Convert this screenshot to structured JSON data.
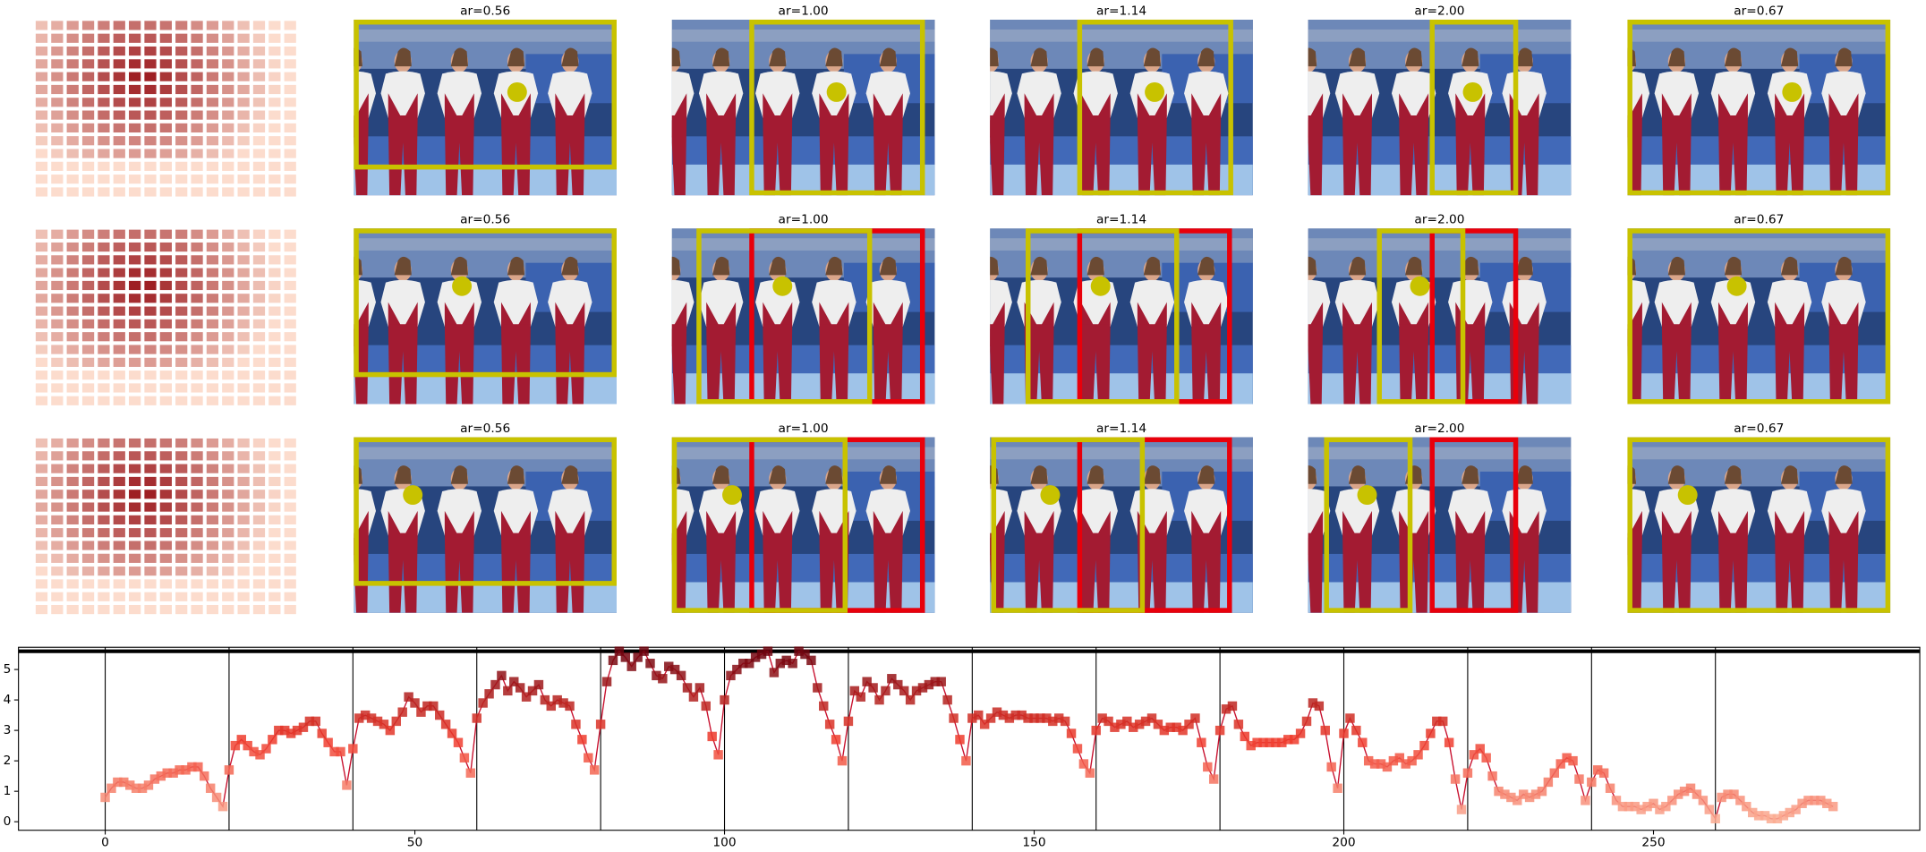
{
  "panel_titles": [
    [
      "ar=0.56",
      "ar=1.00",
      "ar=1.14",
      "ar=2.00",
      "ar=0.67"
    ],
    [
      "ar=0.56",
      "ar=1.00",
      "ar=1.14",
      "ar=2.00",
      "ar=0.67"
    ],
    [
      "ar=0.56",
      "ar=1.00",
      "ar=1.14",
      "ar=2.00",
      "ar=0.67"
    ]
  ],
  "chart_data": {
    "type": "line",
    "color": "#c8102e",
    "x": [
      0,
      1,
      2,
      3,
      4,
      5,
      6,
      7,
      8,
      9,
      10,
      11,
      12,
      13,
      14,
      15,
      16,
      17,
      18,
      19,
      20,
      21,
      22,
      23,
      24,
      25,
      26,
      27,
      28,
      29,
      30,
      31,
      32,
      33,
      34,
      35,
      36,
      37,
      38,
      39,
      40,
      41,
      42,
      43,
      44,
      45,
      46,
      47,
      48,
      49,
      50,
      51,
      52,
      53,
      54,
      55,
      56,
      57,
      58,
      59,
      60,
      61,
      62,
      63,
      64,
      65,
      66,
      67,
      68,
      69,
      70,
      71,
      72,
      73,
      74,
      75,
      76,
      77,
      78,
      79,
      80,
      81,
      82,
      83,
      84,
      85,
      86,
      87,
      88,
      89,
      90,
      91,
      92,
      93,
      94,
      95,
      96,
      97,
      98,
      99,
      100,
      101,
      102,
      103,
      104,
      105,
      106,
      107,
      108,
      109,
      110,
      111,
      112,
      113,
      114,
      115,
      116,
      117,
      118,
      119,
      120,
      121,
      122,
      123,
      124,
      125,
      126,
      127,
      128,
      129,
      130,
      131,
      132,
      133,
      134,
      135,
      136,
      137,
      138,
      139,
      140,
      141,
      142,
      143,
      144,
      145,
      146,
      147,
      148,
      149,
      150,
      151,
      152,
      153,
      154,
      155,
      156,
      157,
      158,
      159,
      160,
      161,
      162,
      163,
      164,
      165,
      166,
      167,
      168,
      169,
      170,
      171,
      172,
      173,
      174,
      175,
      176,
      177,
      178,
      179,
      180,
      181,
      182,
      183,
      184,
      185,
      186,
      187,
      188,
      189,
      190,
      191,
      192,
      193,
      194,
      195,
      196,
      197,
      198,
      199,
      200,
      201,
      202,
      203,
      204,
      205,
      206,
      207,
      208,
      209,
      210,
      211,
      212,
      213,
      214,
      215,
      216,
      217,
      218,
      219,
      220,
      221,
      222,
      223,
      224,
      225,
      226,
      227,
      228,
      229,
      230,
      231,
      232,
      233,
      234,
      235,
      236,
      237,
      238,
      239,
      240,
      241,
      242,
      243,
      244,
      245,
      246,
      247,
      248,
      249,
      250,
      251,
      252,
      253,
      254,
      255,
      256,
      257,
      258,
      259,
      260,
      261,
      262,
      263,
      264,
      265,
      266,
      267,
      268,
      269,
      270,
      271,
      272,
      273,
      274,
      275,
      276,
      277,
      278,
      279
    ],
    "values": [
      0.8,
      1.1,
      1.3,
      1.3,
      1.2,
      1.1,
      1.1,
      1.2,
      1.4,
      1.5,
      1.6,
      1.6,
      1.7,
      1.7,
      1.8,
      1.8,
      1.5,
      1.1,
      0.8,
      0.5,
      1.7,
      2.5,
      2.7,
      2.5,
      2.3,
      2.2,
      2.4,
      2.7,
      3.0,
      3.0,
      2.9,
      3.0,
      3.1,
      3.3,
      3.3,
      2.9,
      2.6,
      2.3,
      2.3,
      1.2,
      2.4,
      3.4,
      3.5,
      3.4,
      3.3,
      3.2,
      3.0,
      3.3,
      3.6,
      4.1,
      3.9,
      3.6,
      3.8,
      3.8,
      3.5,
      3.2,
      2.9,
      2.6,
      2.1,
      1.6,
      3.4,
      3.9,
      4.2,
      4.5,
      4.8,
      4.3,
      4.6,
      4.4,
      4.1,
      4.3,
      4.5,
      4.0,
      3.8,
      4.0,
      3.9,
      3.8,
      3.2,
      2.7,
      2.1,
      1.7,
      3.2,
      4.6,
      5.3,
      5.6,
      5.4,
      5.1,
      5.4,
      5.6,
      5.2,
      4.8,
      4.7,
      5.1,
      5.0,
      4.8,
      4.4,
      4.1,
      4.4,
      3.8,
      2.8,
      2.2,
      4.0,
      4.8,
      5.0,
      5.2,
      5.2,
      5.4,
      5.5,
      5.6,
      4.9,
      5.2,
      5.3,
      5.2,
      5.6,
      5.5,
      5.3,
      4.4,
      3.8,
      3.2,
      2.7,
      2.0,
      3.3,
      4.3,
      4.1,
      4.6,
      4.4,
      4.0,
      4.3,
      4.7,
      4.5,
      4.3,
      4.0,
      4.3,
      4.4,
      4.5,
      4.6,
      4.6,
      4.0,
      3.4,
      2.7,
      2.0,
      3.4,
      3.5,
      3.2,
      3.4,
      3.6,
      3.5,
      3.4,
      3.5,
      3.5,
      3.4,
      3.4,
      3.4,
      3.4,
      3.3,
      3.4,
      3.3,
      2.9,
      2.4,
      1.9,
      1.6,
      3.0,
      3.4,
      3.3,
      3.1,
      3.2,
      3.3,
      3.1,
      3.2,
      3.3,
      3.4,
      3.2,
      3.0,
      3.1,
      3.1,
      3.0,
      3.2,
      3.4,
      2.6,
      1.8,
      1.4,
      3.0,
      3.7,
      3.8,
      3.2,
      2.8,
      2.5,
      2.6,
      2.6,
      2.6,
      2.6,
      2.6,
      2.7,
      2.7,
      2.9,
      3.3,
      3.9,
      3.8,
      3.0,
      1.8,
      1.1,
      2.9,
      3.4,
      3.0,
      2.6,
      2.0,
      1.9,
      1.9,
      1.8,
      2.0,
      2.1,
      1.9,
      2.0,
      2.2,
      2.5,
      2.9,
      3.3,
      3.3,
      2.6,
      1.4,
      0.4,
      1.6,
      2.2,
      2.4,
      2.1,
      1.5,
      1.0,
      0.9,
      0.8,
      0.7,
      0.9,
      0.8,
      0.9,
      1.0,
      1.3,
      1.6,
      1.9,
      2.1,
      2.0,
      1.4,
      0.7,
      1.3,
      1.7,
      1.6,
      1.1,
      0.7,
      0.5,
      0.5,
      0.5,
      0.4,
      0.5,
      0.6,
      0.4,
      0.5,
      0.7,
      0.9,
      1.0,
      1.1,
      0.9,
      0.7,
      0.4,
      0.1,
      0.8,
      0.9,
      0.9,
      0.7,
      0.5,
      0.3,
      0.2,
      0.2,
      0.1,
      0.1,
      0.2,
      0.3,
      0.4,
      0.6,
      0.7,
      0.7,
      0.7,
      0.6,
      0.5
    ],
    "xlim": [
      -14,
      293
    ],
    "ylim": [
      -0.28,
      5.73
    ],
    "xticks": [
      0,
      50,
      100,
      150,
      200,
      250
    ],
    "yticks": [
      0,
      1,
      2,
      3,
      4,
      5
    ],
    "vlines": [
      0,
      20,
      40,
      60,
      80,
      100,
      120,
      140,
      160,
      180,
      200,
      220,
      240,
      260
    ],
    "hline": 5.6
  }
}
